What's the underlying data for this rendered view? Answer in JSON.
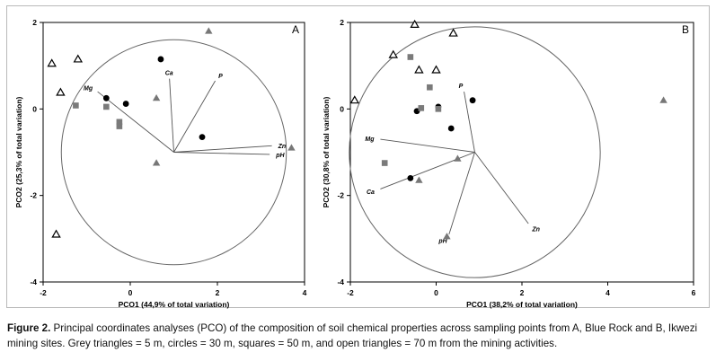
{
  "chart_data": [
    {
      "type": "scatter",
      "panel_label": "A",
      "xlabel": "PCO1 (44,9% of total variation)",
      "ylabel": "PCO2 (25,3% of total variation)",
      "xlim": [
        -2,
        4
      ],
      "ylim": [
        -4,
        2
      ],
      "x_ticks": [
        "-2",
        "0",
        "2",
        "4"
      ],
      "y_ticks": [
        "-4",
        "-2",
        "0",
        "2"
      ],
      "correlation_circle": {
        "center": [
          1,
          -1
        ],
        "radius": 2.6
      },
      "vectors": [
        {
          "label": "Ca",
          "x": 0.9,
          "y": 0.7
        },
        {
          "label": "P",
          "x": 1.95,
          "y": 0.65
        },
        {
          "label": "Mg",
          "x": -0.75,
          "y": 0.4
        },
        {
          "label": "Zn",
          "x": 3.25,
          "y": -0.85
        },
        {
          "label": "pH",
          "x": 3.2,
          "y": -1.05
        }
      ],
      "series": [
        {
          "name": "grey triangles",
          "marker": "triangle-filled",
          "color": "#777777",
          "points": [
            [
              1.8,
              1.8
            ],
            [
              0.6,
              0.25
            ],
            [
              0.6,
              -1.25
            ],
            [
              3.7,
              -0.9
            ]
          ]
        },
        {
          "name": "circles",
          "marker": "circle",
          "color": "#000000",
          "points": [
            [
              0.7,
              1.15
            ],
            [
              -0.55,
              0.25
            ],
            [
              -0.1,
              0.12
            ],
            [
              1.65,
              -0.65
            ]
          ]
        },
        {
          "name": "squares",
          "marker": "square",
          "color": "#7a7a7a",
          "points": [
            [
              -1.25,
              0.08
            ],
            [
              -0.55,
              0.05
            ],
            [
              -0.25,
              -0.3
            ],
            [
              -0.25,
              -0.4
            ]
          ]
        },
        {
          "name": "open triangles",
          "marker": "triangle-open",
          "color": "#000000",
          "points": [
            [
              -1.8,
              1.05
            ],
            [
              -1.2,
              1.15
            ],
            [
              -1.6,
              0.38
            ],
            [
              -1.7,
              -2.9
            ]
          ]
        }
      ]
    },
    {
      "type": "scatter",
      "panel_label": "B",
      "xlabel": "PCO1 (38,2% of total variation)",
      "ylabel": "PCO2 (30,8% of total variation)",
      "xlim": [
        -2,
        6
      ],
      "ylim": [
        -4,
        2
      ],
      "x_ticks": [
        "-2",
        "0",
        "2",
        "4",
        "6"
      ],
      "y_ticks": [
        "-4",
        "-2",
        "0",
        "2"
      ],
      "correlation_circle": {
        "center": [
          0.9,
          -1
        ],
        "radius": 2.9
      },
      "vectors": [
        {
          "label": "P",
          "x": 0.65,
          "y": 0.4
        },
        {
          "label": "Mg",
          "x": -1.3,
          "y": -0.7
        },
        {
          "label": "Ca",
          "x": -1.3,
          "y": -1.85
        },
        {
          "label": "Zn",
          "x": 2.15,
          "y": -2.65
        },
        {
          "label": "pH",
          "x": 0.3,
          "y": -2.9
        }
      ],
      "series": [
        {
          "name": "grey triangles",
          "marker": "triangle-filled",
          "color": "#777777",
          "points": [
            [
              5.3,
              0.2
            ],
            [
              0.5,
              -1.15
            ],
            [
              -0.4,
              -1.65
            ],
            [
              0.25,
              -2.95
            ]
          ]
        },
        {
          "name": "circles",
          "marker": "circle",
          "color": "#000000",
          "points": [
            [
              0.85,
              0.2
            ],
            [
              -0.45,
              -0.05
            ],
            [
              0.05,
              0.05
            ],
            [
              0.35,
              -0.45
            ],
            [
              -0.6,
              -1.6
            ]
          ]
        },
        {
          "name": "squares",
          "marker": "square",
          "color": "#7a7a7a",
          "points": [
            [
              -0.6,
              1.2
            ],
            [
              -0.15,
              0.5
            ],
            [
              -0.35,
              0.02
            ],
            [
              0.05,
              0.0
            ],
            [
              -1.2,
              -1.25
            ]
          ]
        },
        {
          "name": "open triangles",
          "marker": "triangle-open",
          "color": "#000000",
          "points": [
            [
              -0.5,
              1.95
            ],
            [
              0.4,
              1.75
            ],
            [
              -1.0,
              1.25
            ],
            [
              -0.4,
              0.9
            ],
            [
              0.0,
              0.9
            ],
            [
              -1.9,
              0.2
            ]
          ]
        }
      ]
    }
  ],
  "caption": {
    "label": "Figure 2.",
    "text": " Principal coordinates analyses (PCO) of the composition of soil chemical properties across sampling points from A, Blue Rock and B, Ikwezi mining sites. Grey triangles = 5 m, circles = 30 m, squares = 50 m, and open triangles = 70 m from the mining activities."
  }
}
